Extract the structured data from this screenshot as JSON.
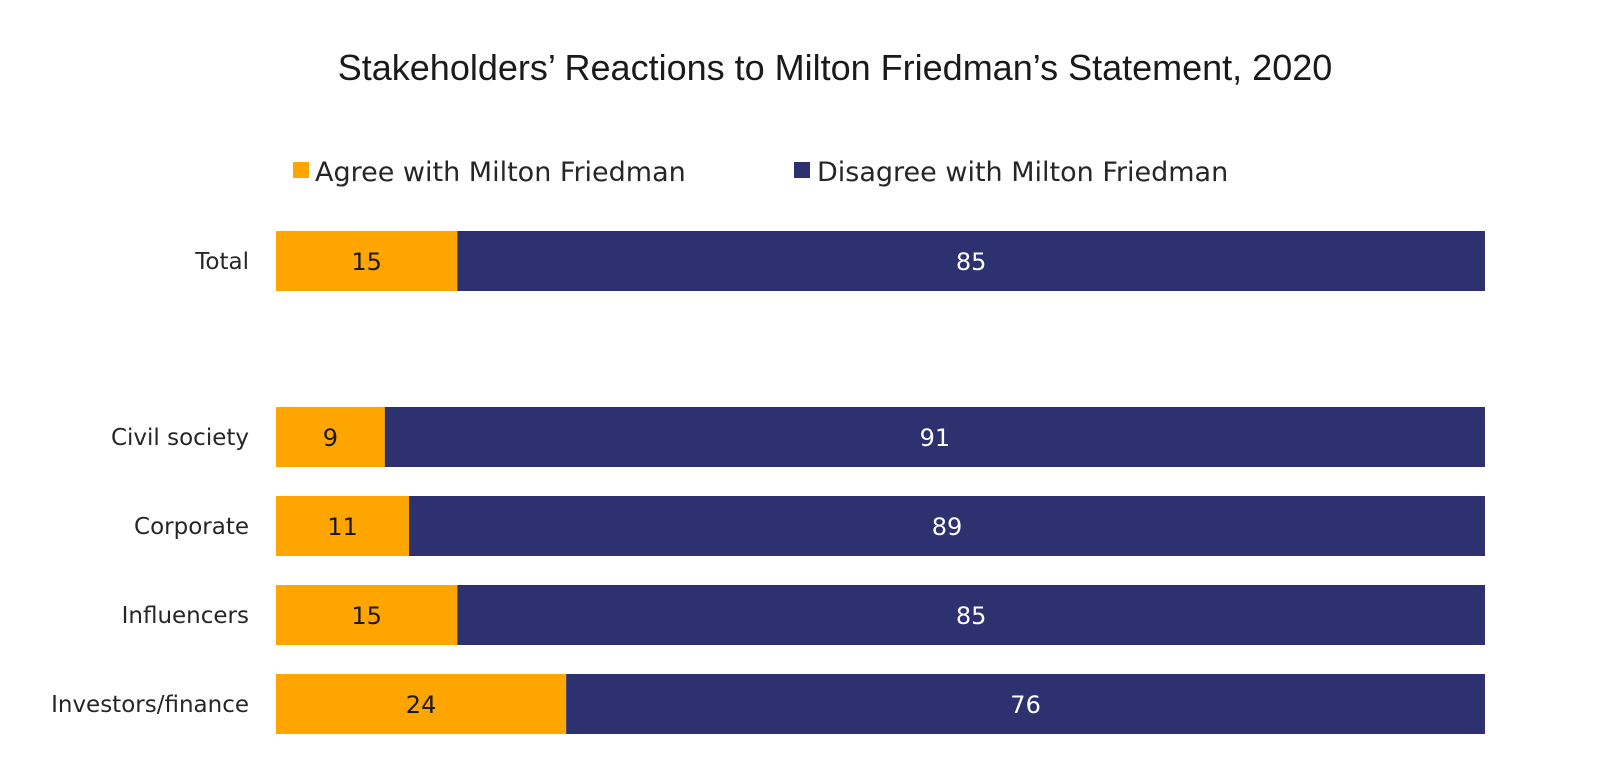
{
  "chart_data": {
    "type": "bar",
    "orientation": "horizontal",
    "stacked": true,
    "title": "Stakeholders’ Reactions to Milton Friedman’s Statement, 2020",
    "categories": [
      "Total",
      "Civil society",
      "Corporate",
      "Influencers",
      "Investors/finance"
    ],
    "series": [
      {
        "name": "Agree with Milton Friedman",
        "values": [
          15,
          9,
          11,
          15,
          24
        ],
        "color": "#FFA500",
        "label_color": "#1a1a1a"
      },
      {
        "name": "Disagree with Milton Friedman",
        "values": [
          85,
          91,
          89,
          85,
          76
        ],
        "color": "#2D3170",
        "label_color": "#ffffff"
      }
    ],
    "xlim": [
      0,
      100
    ],
    "grid": false,
    "legend_position": "top",
    "data_labels": true,
    "background": "#ffffff"
  }
}
